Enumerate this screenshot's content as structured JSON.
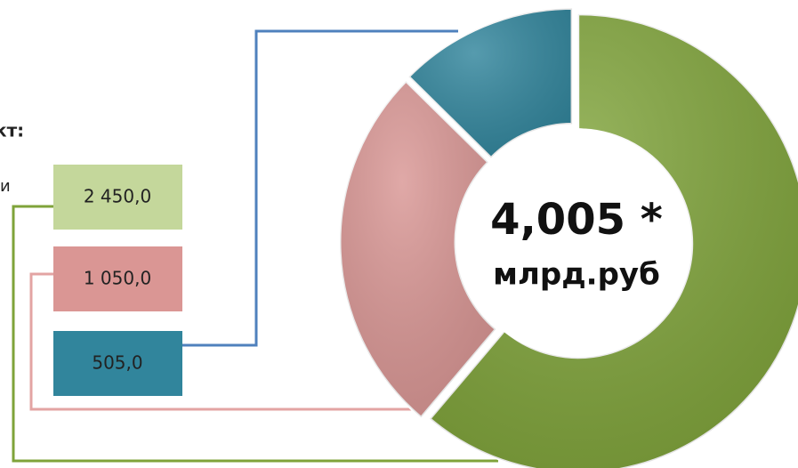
{
  "chart_data": {
    "type": "donut",
    "values": [
      2450,
      1050,
      505
    ],
    "value_labels": [
      "2 450,0",
      "1 050,0",
      "505,0"
    ],
    "colors": [
      "#7fa33a",
      "#d99694",
      "#31859c"
    ],
    "box_colors": [
      "#c4d79b",
      "#da9694",
      "#31859c"
    ],
    "center_label": [
      "4,005 *",
      "млрд.руб"
    ],
    "annotations": [
      "кт:",
      "и"
    ]
  }
}
